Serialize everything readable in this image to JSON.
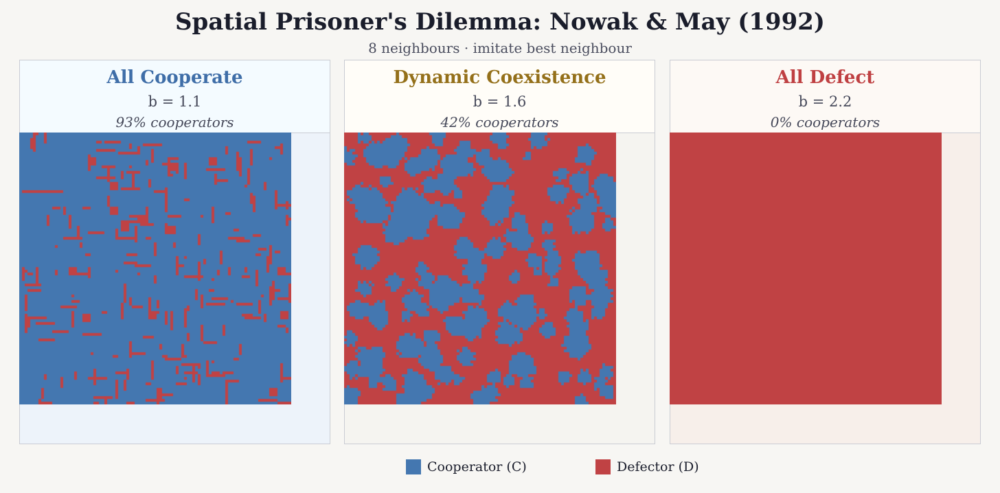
{
  "title": "Spatial Prisoner's Dilemma: Nowak & May (1992)",
  "subtitle": "8 neighbours  ·  imitate best neighbour",
  "colors": {
    "cooperator": "#4477b0",
    "defector": "#c04244",
    "page_bg": "#f7f6f3"
  },
  "panels": [
    {
      "title": "All Cooperate",
      "param": "b = 1.1",
      "coop_fraction_label": "93% cooperators",
      "coop_fraction": 0.93,
      "title_color": "#3f6ea8",
      "head_bg": "#f4fbff",
      "body_bg": "#edf3fa",
      "pattern": "scattered-defector-lines"
    },
    {
      "title": "Dynamic Coexistence",
      "param": "b = 1.6",
      "coop_fraction_label": "42% cooperators",
      "coop_fraction": 0.42,
      "title_color": "#94701a",
      "head_bg": "#fffdf8",
      "body_bg": "#f5f4f0",
      "pattern": "cooperator-clusters"
    },
    {
      "title": "All Defect",
      "param": "b = 2.2",
      "coop_fraction_label": "0% cooperators",
      "coop_fraction": 0.0,
      "title_color": "#bf4042",
      "head_bg": "#fdf9f5",
      "body_bg": "#f7efea",
      "pattern": "uniform-defector"
    }
  ],
  "legend": [
    {
      "label": "Cooperator (C)",
      "color": "#4477b0"
    },
    {
      "label": "Defector (D)",
      "color": "#c04244"
    }
  ]
}
